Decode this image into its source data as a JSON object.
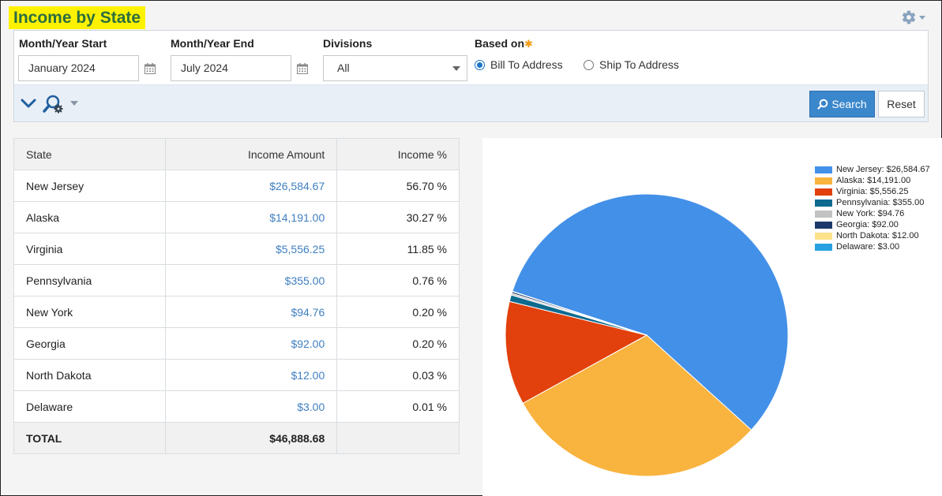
{
  "page": {
    "title": "Income by State"
  },
  "filters": {
    "start_label": "Month/Year Start",
    "start_value": "January 2024",
    "end_label": "Month/Year End",
    "end_value": "July 2024",
    "divisions_label": "Divisions",
    "divisions_value": "All",
    "based_on_label": "Based on",
    "required_mark": "✱",
    "radio_bill": "Bill To Address",
    "radio_ship": "Ship To Address",
    "selected": "bill"
  },
  "toolbar": {
    "search_label": "Search",
    "reset_label": "Reset"
  },
  "table": {
    "headers": [
      "State",
      "Income Amount",
      "Income %"
    ],
    "rows": [
      {
        "state": "New Jersey",
        "amount": "$26,584.67",
        "pct": "56.70 %"
      },
      {
        "state": "Alaska",
        "amount": "$14,191.00",
        "pct": "30.27 %"
      },
      {
        "state": "Virginia",
        "amount": "$5,556.25",
        "pct": "11.85 %"
      },
      {
        "state": "Pennsylvania",
        "amount": "$355.00",
        "pct": "0.76 %"
      },
      {
        "state": "New York",
        "amount": "$94.76",
        "pct": "0.20 %"
      },
      {
        "state": "Georgia",
        "amount": "$92.00",
        "pct": "0.20 %"
      },
      {
        "state": "North Dakota",
        "amount": "$12.00",
        "pct": "0.03 %"
      },
      {
        "state": "Delaware",
        "amount": "$3.00",
        "pct": "0.01 %"
      }
    ],
    "total_label": "TOTAL",
    "total_amount": "$46,888.68"
  },
  "chart_data": {
    "type": "pie",
    "legend_position": "right",
    "categories": [
      "New Jersey",
      "Alaska",
      "Virginia",
      "Pennsylvania",
      "New York",
      "Georgia",
      "North Dakota",
      "Delaware"
    ],
    "values": [
      26584.67,
      14191.0,
      5556.25,
      355.0,
      94.76,
      92.0,
      12.0,
      3.0
    ],
    "legend": [
      "New Jersey: $26,584.67",
      "Alaska: $14,191.00",
      "Virginia: $5,556.25",
      "Pennsylvania: $355.00",
      "New York: $94.76",
      "Georgia: $92.00",
      "North Dakota: $12.00",
      "Delaware: $3.00"
    ],
    "colors": [
      "#4390e8",
      "#f9b33f",
      "#e2400c",
      "#0e6a8f",
      "#c2c2c2",
      "#1b3a6b",
      "#fde28c",
      "#27a1e0"
    ]
  }
}
